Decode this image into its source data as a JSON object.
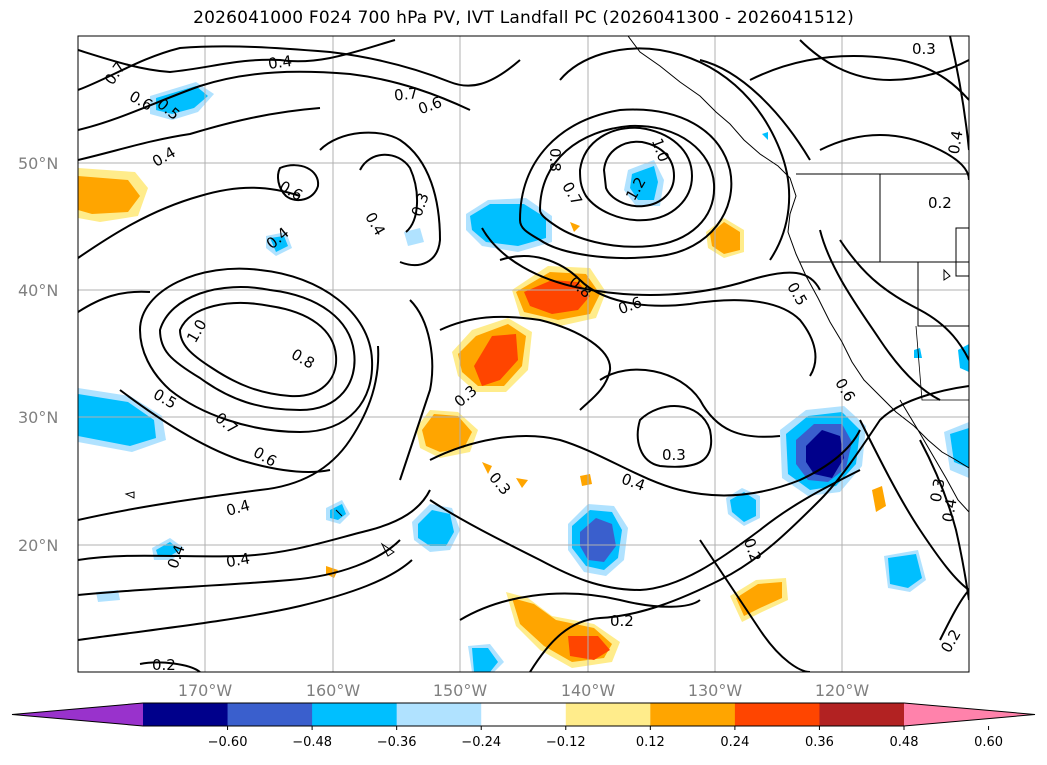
{
  "title": "2026041000 F024 700 hPa PV, IVT Landfall PC (2026041300 - 2026041512)",
  "lat_labels": [
    "20°N",
    "30°N",
    "40°N",
    "50°N"
  ],
  "lon_labels": [
    "170°W",
    "160°W",
    "150°W",
    "140°W",
    "130°W",
    "120°W"
  ],
  "colorbar": {
    "ticks": [
      "−0.60",
      "−0.48",
      "−0.36",
      "−0.24",
      "−0.12",
      "0.12",
      "0.24",
      "0.36",
      "0.48",
      "0.60"
    ],
    "colors": [
      "#9932cc",
      "#00008b",
      "#3a5fcd",
      "#00bfff",
      "#b0e2ff",
      "#ffffff",
      "#ffec8b",
      "#ffa500",
      "#ff4500",
      "#b22222",
      "#ff82ab"
    ]
  },
  "contour_labels": [
    "0.7",
    "0.6",
    "0.5",
    "0.4",
    "0.4",
    "0.7",
    "0.6",
    "0.6",
    "0.4",
    "0.3",
    "0.4",
    "0.8",
    "0.7",
    "1.0",
    "1.2",
    "0.3",
    "0.2",
    "0.4",
    "0.8",
    "0.6",
    "0.5",
    "1.0",
    "0.8",
    "0.5",
    "0.7",
    "0.6",
    "0.3",
    "0.4",
    "0.4",
    "0.4",
    "0.3",
    "0.3",
    "0.4",
    "0.2",
    "0.2",
    "0.2",
    "0.4",
    "0.3",
    "0.2",
    "0.6"
  ],
  "colors": {
    "contour": "#000000",
    "gridline": "#b0b0b0",
    "axis_label": "#808080"
  }
}
